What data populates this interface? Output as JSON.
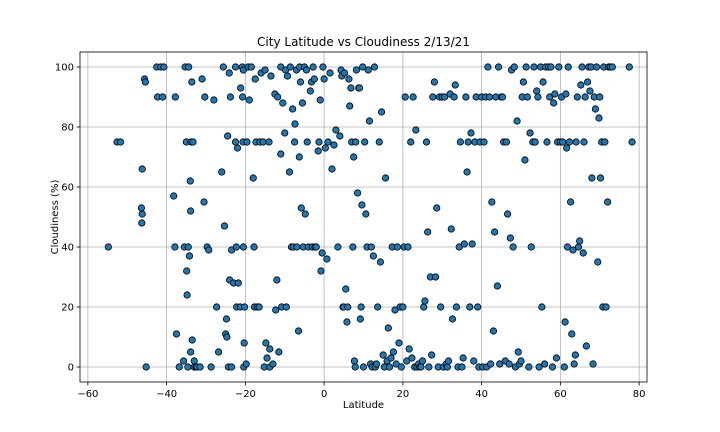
{
  "chart_data": {
    "type": "scatter",
    "title": "City Latitude vs Cloudiness 2/13/21",
    "xlabel": "Latitude",
    "ylabel": "Cloudiness (%)",
    "xlim": [
      -62,
      82
    ],
    "ylim": [
      -5,
      105
    ],
    "xticks": [
      -60,
      -40,
      -20,
      0,
      20,
      40,
      60,
      80
    ],
    "yticks": [
      0,
      20,
      40,
      60,
      80,
      100
    ],
    "grid": true,
    "marker_color": "#1f77b4",
    "edge_color": "#000000",
    "points": [
      [
        -54.8,
        40
      ],
      [
        -52.6,
        75
      ],
      [
        -51.7,
        75
      ],
      [
        -46.2,
        66
      ],
      [
        -46.4,
        53
      ],
      [
        -46.2,
        51
      ],
      [
        -46.3,
        48
      ],
      [
        -45.6,
        96
      ],
      [
        -45.4,
        95
      ],
      [
        -45.2,
        0
      ],
      [
        -42.5,
        100
      ],
      [
        -42.3,
        90
      ],
      [
        -41.5,
        100
      ],
      [
        -41.0,
        90
      ],
      [
        -40.7,
        100
      ],
      [
        -38.2,
        57
      ],
      [
        -37.9,
        40
      ],
      [
        -37.8,
        90
      ],
      [
        -37.5,
        11
      ],
      [
        -36.8,
        0
      ],
      [
        -35.7,
        2
      ],
      [
        -35.5,
        40
      ],
      [
        -35.3,
        100
      ],
      [
        -35.0,
        75
      ],
      [
        -34.8,
        24
      ],
      [
        -34.9,
        32
      ],
      [
        -34.6,
        0
      ],
      [
        -34.5,
        40
      ],
      [
        -34.4,
        100
      ],
      [
        -34.2,
        37
      ],
      [
        -34.0,
        62
      ],
      [
        -33.9,
        52
      ],
      [
        -33.8,
        75
      ],
      [
        -33.6,
        95
      ],
      [
        -33.5,
        9
      ],
      [
        -33.9,
        5
      ],
      [
        -33.3,
        75
      ],
      [
        -33.0,
        2
      ],
      [
        -33.0,
        0
      ],
      [
        -32.5,
        0
      ],
      [
        -32.3,
        0
      ],
      [
        -31.5,
        0
      ],
      [
        -31.0,
        96
      ],
      [
        -30.5,
        55
      ],
      [
        -30.3,
        90
      ],
      [
        -29.7,
        40
      ],
      [
        -29.3,
        39
      ],
      [
        -28.7,
        0
      ],
      [
        -28.0,
        89
      ],
      [
        -27.3,
        20
      ],
      [
        -26.8,
        5
      ],
      [
        -26.0,
        65
      ],
      [
        -25.6,
        100
      ],
      [
        -25.3,
        47
      ],
      [
        -25.0,
        11
      ],
      [
        -24.8,
        16
      ],
      [
        -24.7,
        10
      ],
      [
        -24.5,
        77
      ],
      [
        -24.3,
        0
      ],
      [
        -24.1,
        98
      ],
      [
        -24.0,
        29
      ],
      [
        -23.8,
        90
      ],
      [
        -23.5,
        0
      ],
      [
        -23.0,
        28
      ],
      [
        -23.5,
        39
      ],
      [
        -22.5,
        100
      ],
      [
        -22.5,
        75
      ],
      [
        -22.3,
        40
      ],
      [
        -22.2,
        20
      ],
      [
        -22.0,
        73
      ],
      [
        -21.8,
        28
      ],
      [
        -21.3,
        20
      ],
      [
        -21.2,
        93
      ],
      [
        -20.8,
        100
      ],
      [
        -20.7,
        90
      ],
      [
        -20.6,
        75
      ],
      [
        -20.5,
        99
      ],
      [
        -20.4,
        0
      ],
      [
        -20.3,
        8
      ],
      [
        -20.5,
        40
      ],
      [
        -20.2,
        20
      ],
      [
        -19.8,
        1
      ],
      [
        -19.6,
        75
      ],
      [
        -19.3,
        100
      ],
      [
        -19.0,
        89
      ],
      [
        -18.5,
        100
      ],
      [
        -18.0,
        63
      ],
      [
        -17.8,
        40
      ],
      [
        -17.7,
        20
      ],
      [
        -17.5,
        96
      ],
      [
        -17.3,
        75
      ],
      [
        -17.0,
        20
      ],
      [
        -16.5,
        20
      ],
      [
        -16.3,
        75
      ],
      [
        -16.0,
        98
      ],
      [
        -15.5,
        75
      ],
      [
        -15.2,
        0
      ],
      [
        -15.0,
        99
      ],
      [
        -14.8,
        8
      ],
      [
        -14.5,
        3
      ],
      [
        -14.0,
        75
      ],
      [
        -13.8,
        6
      ],
      [
        -13.8,
        0
      ],
      [
        -13.5,
        97
      ],
      [
        -13.0,
        1
      ],
      [
        -12.5,
        91
      ],
      [
        -12.3,
        19
      ],
      [
        -12.0,
        29
      ],
      [
        -11.5,
        5
      ],
      [
        -11.8,
        90
      ],
      [
        -11.0,
        71
      ],
      [
        -11.0,
        100
      ],
      [
        -10.8,
        20
      ],
      [
        -10.5,
        88
      ],
      [
        -10.0,
        78
      ],
      [
        -9.8,
        99
      ],
      [
        -9.6,
        20
      ],
      [
        -9.3,
        97
      ],
      [
        -8.8,
        65
      ],
      [
        -8.6,
        100
      ],
      [
        -8.3,
        40
      ],
      [
        -8.0,
        86
      ],
      [
        -7.8,
        40
      ],
      [
        -7.5,
        75
      ],
      [
        -7.4,
        81
      ],
      [
        -7.0,
        99
      ],
      [
        -6.9,
        40
      ],
      [
        -6.5,
        12
      ],
      [
        -6.3,
        70
      ],
      [
        -6.2,
        100
      ],
      [
        -6.0,
        95
      ],
      [
        -5.8,
        53
      ],
      [
        -5.5,
        88
      ],
      [
        -5.3,
        40
      ],
      [
        -5.0,
        100
      ],
      [
        -4.8,
        51
      ],
      [
        -4.5,
        99
      ],
      [
        -4.3,
        75
      ],
      [
        -4.0,
        40
      ],
      [
        -3.5,
        92
      ],
      [
        -3.2,
        95
      ],
      [
        -3.0,
        40
      ],
      [
        -2.8,
        100
      ],
      [
        -2.5,
        96
      ],
      [
        -2.3,
        40
      ],
      [
        -2.0,
        40
      ],
      [
        -1.5,
        72
      ],
      [
        -1.3,
        75
      ],
      [
        -1.0,
        89
      ],
      [
        -0.8,
        32
      ],
      [
        -0.5,
        38
      ],
      [
        -0.3,
        100
      ],
      [
        0.0,
        96
      ],
      [
        0.3,
        73
      ],
      [
        0.7,
        36
      ],
      [
        1.0,
        75
      ],
      [
        1.5,
        98
      ],
      [
        2.0,
        66
      ],
      [
        2.5,
        74
      ],
      [
        3.0,
        79
      ],
      [
        3.5,
        40
      ],
      [
        4.0,
        77
      ],
      [
        4.3,
        99
      ],
      [
        4.5,
        97
      ],
      [
        4.8,
        20
      ],
      [
        5.0,
        20
      ],
      [
        5.2,
        98
      ],
      [
        5.5,
        26
      ],
      [
        5.8,
        15
      ],
      [
        6.0,
        20
      ],
      [
        6.3,
        96
      ],
      [
        6.5,
        87
      ],
      [
        6.8,
        93
      ],
      [
        7.0,
        75
      ],
      [
        7.3,
        40
      ],
      [
        7.5,
        70
      ],
      [
        7.7,
        2
      ],
      [
        7.9,
        0
      ],
      [
        8.0,
        75
      ],
      [
        8.2,
        99
      ],
      [
        8.5,
        58
      ],
      [
        8.8,
        93
      ],
      [
        9.0,
        93
      ],
      [
        9.2,
        16
      ],
      [
        9.4,
        20
      ],
      [
        9.6,
        54
      ],
      [
        9.8,
        100
      ],
      [
        10.0,
        0
      ],
      [
        10.3,
        75
      ],
      [
        10.6,
        51
      ],
      [
        10.9,
        40
      ],
      [
        11.2,
        99
      ],
      [
        11.5,
        82
      ],
      [
        11.8,
        1
      ],
      [
        12.0,
        40
      ],
      [
        12.2,
        0
      ],
      [
        12.5,
        37
      ],
      [
        12.8,
        100
      ],
      [
        13.0,
        0
      ],
      [
        13.3,
        1
      ],
      [
        13.6,
        20
      ],
      [
        14.0,
        75
      ],
      [
        14.3,
        35
      ],
      [
        14.6,
        85
      ],
      [
        15.0,
        4
      ],
      [
        15.3,
        0
      ],
      [
        15.6,
        63
      ],
      [
        16.0,
        2
      ],
      [
        16.3,
        13
      ],
      [
        16.6,
        0
      ],
      [
        17.0,
        3
      ],
      [
        17.3,
        40
      ],
      [
        17.6,
        5
      ],
      [
        18.0,
        19
      ],
      [
        18.3,
        1
      ],
      [
        18.6,
        40
      ],
      [
        19.0,
        8
      ],
      [
        19.3,
        20
      ],
      [
        19.6,
        0
      ],
      [
        20.0,
        20
      ],
      [
        20.3,
        40
      ],
      [
        20.6,
        90
      ],
      [
        21.0,
        2
      ],
      [
        21.3,
        40
      ],
      [
        21.6,
        6
      ],
      [
        22.0,
        75
      ],
      [
        22.3,
        3
      ],
      [
        22.6,
        90
      ],
      [
        23.0,
        0
      ],
      [
        23.3,
        79
      ],
      [
        23.6,
        0
      ],
      [
        24.0,
        1
      ],
      [
        24.3,
        0
      ],
      [
        24.6,
        0
      ],
      [
        25.0,
        2
      ],
      [
        25.3,
        20
      ],
      [
        25.6,
        22
      ],
      [
        26.0,
        75
      ],
      [
        26.3,
        45
      ],
      [
        26.6,
        0
      ],
      [
        27.0,
        30
      ],
      [
        27.3,
        4
      ],
      [
        27.6,
        90
      ],
      [
        28.0,
        95
      ],
      [
        28.3,
        30
      ],
      [
        28.6,
        53
      ],
      [
        29.0,
        0
      ],
      [
        29.3,
        90
      ],
      [
        29.6,
        20
      ],
      [
        30.0,
        90
      ],
      [
        30.3,
        0
      ],
      [
        30.6,
        90
      ],
      [
        31.0,
        1
      ],
      [
        31.3,
        0
      ],
      [
        31.6,
        2
      ],
      [
        32.0,
        91
      ],
      [
        32.3,
        46
      ],
      [
        32.6,
        16
      ],
      [
        33.0,
        90
      ],
      [
        33.3,
        94
      ],
      [
        33.6,
        20
      ],
      [
        34.0,
        0
      ],
      [
        34.3,
        40
      ],
      [
        34.6,
        75
      ],
      [
        35.0,
        0
      ],
      [
        35.3,
        3
      ],
      [
        35.6,
        41
      ],
      [
        36.0,
        90
      ],
      [
        36.3,
        65
      ],
      [
        36.6,
        75
      ],
      [
        37.0,
        20
      ],
      [
        37.3,
        78
      ],
      [
        37.6,
        41
      ],
      [
        38.0,
        2
      ],
      [
        38.3,
        75
      ],
      [
        38.6,
        90
      ],
      [
        39.0,
        20
      ],
      [
        39.3,
        0
      ],
      [
        39.6,
        75
      ],
      [
        40.0,
        90
      ],
      [
        40.3,
        0
      ],
      [
        40.6,
        75
      ],
      [
        41.0,
        90
      ],
      [
        41.3,
        0
      ],
      [
        41.6,
        100
      ],
      [
        42.0,
        90
      ],
      [
        42.3,
        1
      ],
      [
        42.6,
        55
      ],
      [
        43.0,
        12
      ],
      [
        43.3,
        45
      ],
      [
        43.6,
        90
      ],
      [
        44.0,
        27
      ],
      [
        44.3,
        100
      ],
      [
        44.6,
        1
      ],
      [
        45.0,
        90
      ],
      [
        45.3,
        90
      ],
      [
        45.6,
        75
      ],
      [
        46.0,
        2
      ],
      [
        46.3,
        75
      ],
      [
        46.6,
        51
      ],
      [
        47.0,
        1
      ],
      [
        47.3,
        43
      ],
      [
        47.6,
        99
      ],
      [
        48.0,
        40
      ],
      [
        48.3,
        100
      ],
      [
        48.6,
        0
      ],
      [
        49.0,
        82
      ],
      [
        49.3,
        5
      ],
      [
        49.6,
        1
      ],
      [
        50.0,
        2
      ],
      [
        50.3,
        90
      ],
      [
        50.6,
        95
      ],
      [
        51.0,
        69
      ],
      [
        51.3,
        100
      ],
      [
        51.6,
        90
      ],
      [
        52.0,
        0
      ],
      [
        52.3,
        78
      ],
      [
        52.6,
        40
      ],
      [
        53.0,
        75
      ],
      [
        53.3,
        100
      ],
      [
        53.6,
        75
      ],
      [
        54.0,
        92
      ],
      [
        54.3,
        90
      ],
      [
        54.6,
        0
      ],
      [
        55.0,
        100
      ],
      [
        55.3,
        20
      ],
      [
        55.6,
        95
      ],
      [
        56.0,
        1
      ],
      [
        56.3,
        100
      ],
      [
        56.6,
        75
      ],
      [
        57.0,
        100
      ],
      [
        57.3,
        90
      ],
      [
        57.6,
        100
      ],
      [
        58.0,
        0
      ],
      [
        58.3,
        88
      ],
      [
        58.6,
        91
      ],
      [
        59.0,
        3
      ],
      [
        59.3,
        75
      ],
      [
        59.6,
        100
      ],
      [
        60.0,
        75
      ],
      [
        60.3,
        90
      ],
      [
        60.6,
        75
      ],
      [
        61.0,
        0
      ],
      [
        61.2,
        15
      ],
      [
        61.4,
        91
      ],
      [
        61.6,
        73
      ],
      [
        61.8,
        40
      ],
      [
        62.0,
        100
      ],
      [
        62.3,
        75
      ],
      [
        62.6,
        55
      ],
      [
        62.9,
        11
      ],
      [
        63.2,
        39
      ],
      [
        63.5,
        1
      ],
      [
        63.8,
        4
      ],
      [
        64.0,
        75
      ],
      [
        64.3,
        90
      ],
      [
        64.6,
        40
      ],
      [
        64.9,
        42
      ],
      [
        65.2,
        94
      ],
      [
        65.5,
        100
      ],
      [
        65.8,
        38
      ],
      [
        66.0,
        75
      ],
      [
        66.3,
        90
      ],
      [
        66.6,
        7
      ],
      [
        66.9,
        95
      ],
      [
        67.2,
        100
      ],
      [
        67.5,
        92
      ],
      [
        67.8,
        100
      ],
      [
        68.0,
        63
      ],
      [
        68.3,
        1
      ],
      [
        68.6,
        90
      ],
      [
        68.9,
        86
      ],
      [
        69.2,
        100
      ],
      [
        69.5,
        35
      ],
      [
        69.8,
        83
      ],
      [
        70.0,
        90
      ],
      [
        70.2,
        63
      ],
      [
        70.5,
        75
      ],
      [
        70.8,
        20
      ],
      [
        71.0,
        100
      ],
      [
        71.3,
        75
      ],
      [
        71.6,
        20
      ],
      [
        72.0,
        55
      ],
      [
        72.3,
        100
      ],
      [
        72.7,
        100
      ],
      [
        73.2,
        100
      ],
      [
        77.5,
        100
      ],
      [
        78.2,
        75
      ]
    ]
  }
}
